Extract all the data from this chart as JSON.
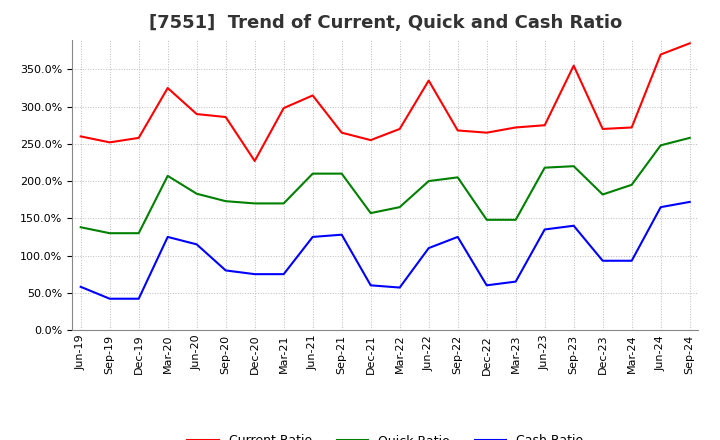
{
  "title": "[7551]  Trend of Current, Quick and Cash Ratio",
  "x_labels": [
    "Jun-19",
    "Sep-19",
    "Dec-19",
    "Mar-20",
    "Jun-20",
    "Sep-20",
    "Dec-20",
    "Mar-21",
    "Jun-21",
    "Sep-21",
    "Dec-21",
    "Mar-22",
    "Jun-22",
    "Sep-22",
    "Dec-22",
    "Mar-23",
    "Jun-23",
    "Sep-23",
    "Dec-23",
    "Mar-24",
    "Jun-24",
    "Sep-24"
  ],
  "current_ratio": [
    260,
    252,
    258,
    325,
    290,
    286,
    227,
    298,
    315,
    265,
    255,
    270,
    335,
    268,
    265,
    272,
    275,
    355,
    270,
    272,
    370,
    385
  ],
  "quick_ratio": [
    138,
    130,
    130,
    207,
    183,
    173,
    170,
    170,
    210,
    210,
    157,
    165,
    200,
    205,
    148,
    148,
    218,
    220,
    182,
    195,
    248,
    258
  ],
  "cash_ratio": [
    58,
    42,
    42,
    125,
    115,
    80,
    75,
    75,
    125,
    128,
    60,
    57,
    110,
    125,
    60,
    65,
    135,
    140,
    93,
    93,
    165,
    172
  ],
  "current_color": "#ff0000",
  "quick_color": "#008000",
  "cash_color": "#0000ff",
  "ylim": [
    0,
    390
  ],
  "ytick_values": [
    0,
    50,
    100,
    150,
    200,
    250,
    300,
    350
  ],
  "background_color": "#ffffff",
  "title_fontsize": 13,
  "legend_fontsize": 9,
  "tick_fontsize": 8
}
